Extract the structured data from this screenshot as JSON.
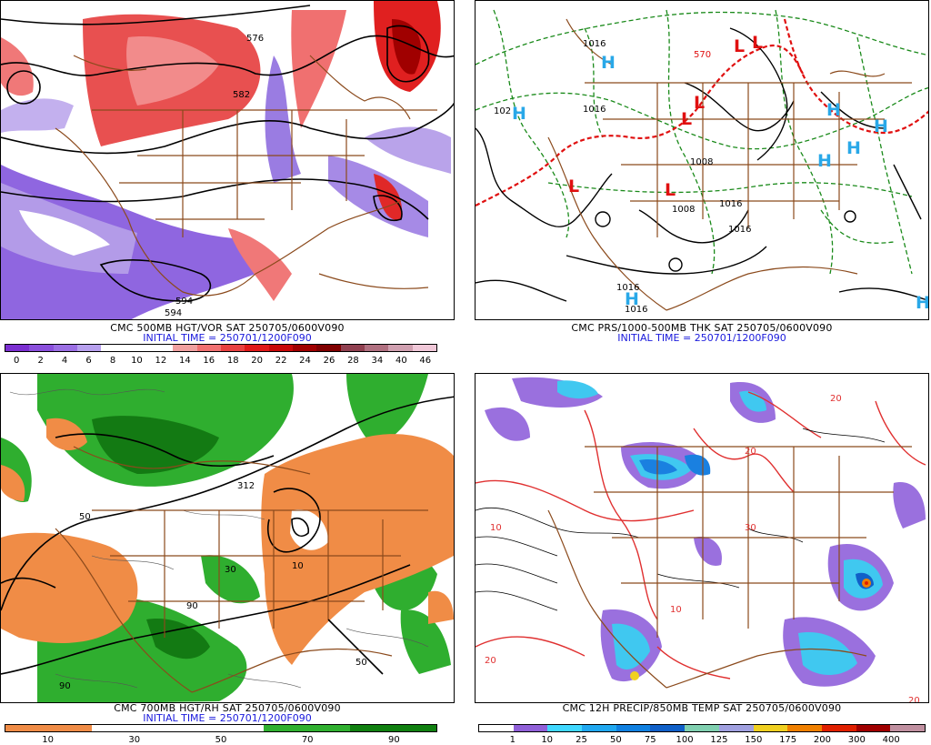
{
  "panels": [
    {
      "title": "CMC 500MB HGT/VOR SAT 250705/0600V090",
      "initial": "INITIAL TIME = 250701/1200F090",
      "colorbar": [
        "#7b2fd1",
        "#8a4fdc",
        "#9b6fe4",
        "#b7a0ee",
        "#ffffff",
        "#ffffff",
        "#ffffff",
        "#f0a0a0",
        "#f07070",
        "#e84040",
        "#e01818",
        "#c80808",
        "#a00000",
        "#800000",
        "#904050",
        "#b07080",
        "#d0a0b0",
        "#f0c8d8"
      ],
      "ticks": [
        "0",
        "2",
        "4",
        "6",
        "8",
        "10",
        "12",
        "14",
        "16",
        "18",
        "20",
        "22",
        "24",
        "26",
        "28",
        "34",
        "40",
        "46"
      ],
      "labels": [
        "576",
        "582",
        "594",
        "594"
      ]
    },
    {
      "title": "CMC PRS/1000-500MB THK SAT 250705/0600V090",
      "initial": "INITIAL TIME = 250701/1200F090",
      "pressure_labels": [
        "1016",
        "102",
        "1016",
        "1008",
        "1008",
        "1016",
        "1016",
        "1016",
        "1016",
        "570"
      ],
      "highs": [
        "H",
        "H",
        "H",
        "H",
        "H",
        "H",
        "H",
        "H"
      ],
      "lows": [
        "L",
        "L",
        "L",
        "L",
        "L",
        "L"
      ]
    },
    {
      "title": "CMC 700MB HGT/RH SAT 250705/0600V090",
      "initial": "INITIAL TIME = 250701/1200F090",
      "colorbar": [
        "#f08c46",
        "#f08c46",
        "#ffffff",
        "#ffffff",
        "#ffffff",
        "#ffffff",
        "#30b030",
        "#30b030",
        "#108010",
        "#108010"
      ],
      "ticks": [
        "10",
        "30",
        "50",
        "70",
        "90"
      ],
      "labels": [
        "312",
        "50",
        "90",
        "10",
        "30",
        "50",
        "90"
      ]
    },
    {
      "title": "CMC 12H PRECIP/850MB TEMP SAT 250705/0600V090",
      "colorbar": [
        "#ffffff",
        "#9060d8",
        "#40d8ff",
        "#20a8f0",
        "#1080e0",
        "#1060c8",
        "#80d0b0",
        "#a0a0e0",
        "#f0d020",
        "#f08000",
        "#e02000",
        "#a00000",
        "#c090a0"
      ],
      "ticks": [
        "1",
        "10",
        "25",
        "50",
        "75",
        "100",
        "125",
        "150",
        "175",
        "200",
        "300",
        "400"
      ],
      "labels": [
        "20",
        "10",
        "30",
        "20",
        "10",
        "20",
        "20"
      ]
    }
  ]
}
